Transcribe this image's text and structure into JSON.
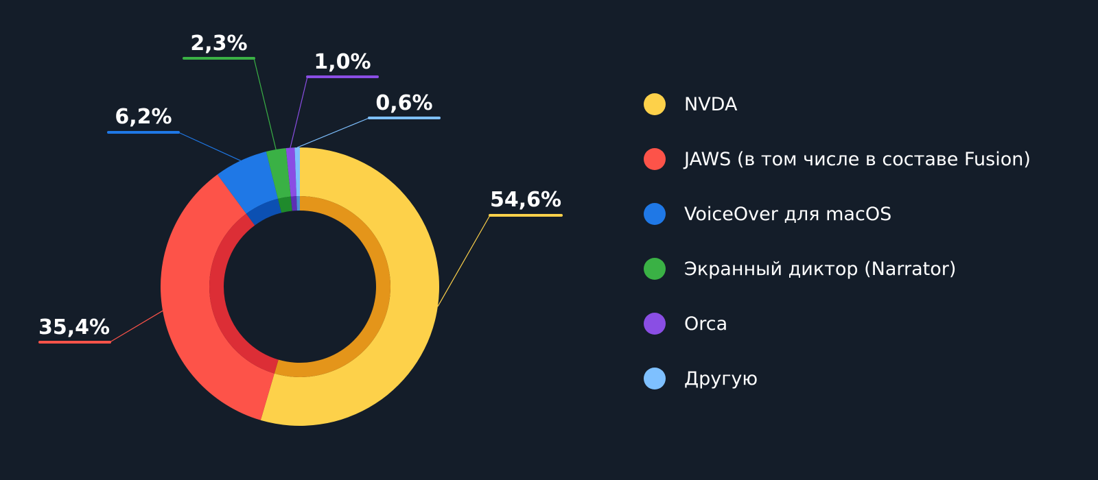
{
  "chart_data": {
    "type": "pie",
    "title": "",
    "categories": [
      "NVDA",
      "JAWS (в том числе в составе Fusion)",
      "VoiceOver для macOS",
      "Экранный диктор (Narrator)",
      "Orca",
      "Другую"
    ],
    "values": [
      54.6,
      35.4,
      6.2,
      2.3,
      1.0,
      0.6
    ],
    "value_labels": [
      "54,6%",
      "35,4%",
      "6,2%",
      "2,3%",
      "1,0%",
      "0,6%"
    ],
    "colors": [
      "#fdd14a",
      "#fd5349",
      "#1f78e6",
      "#3ab145",
      "#8a4ee4",
      "#7ec0ff"
    ],
    "inner_colors": [
      "#e4951a",
      "#dc2e36",
      "#0c50b2",
      "#1f8a2c",
      "#5d2fb4",
      "#4f8fd6"
    ],
    "legend_position": "right",
    "donut": true
  }
}
